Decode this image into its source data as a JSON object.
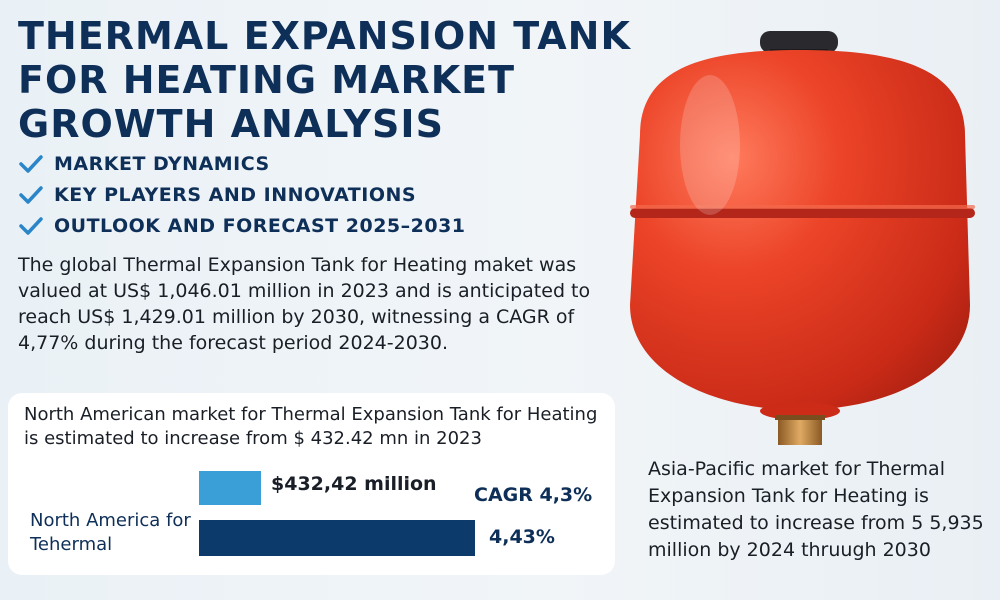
{
  "title": "THERMAL EXPANSION TANK FOR HEATING MARKET GROWTH ANALYSIS",
  "bullets": [
    "MARKET DYNAMICS",
    "KEY PLAYERS AND INNOVATIONS",
    "OUTLOOK AND FORECAST 2025–2031"
  ],
  "intro": "The global Thermal Expansion Tank for Heating maket was valued at US$ 1,046.01 million in 2023 and is anticipated to reach US$ 1,429.01 million by 2030, witnessing a CAGR of 4,77% during the forecast period 2024-2030.",
  "north_america": {
    "text": "North American market for Thermal Expansion Tank for Heating is estimated to increase from $ 432.42 mn in 2023",
    "label": "North America for Tehermal",
    "bar_value_label": "$432,42 million",
    "cagr_label": "CAGR 4,3%",
    "bar2_label": "4,43%"
  },
  "asia_pacific": {
    "text": "Asia-Pacific market for Thermal Expansion Tank for Heating is estimated to increase from 5 5,935 million by 2024 thruugh 2030"
  },
  "colors": {
    "title": "#0e2f58",
    "bar_light": "#3a9fd6",
    "bar_dark": "#0b3a6b",
    "tank_red": "#e63a26"
  },
  "icons": [
    "check-icon",
    "expansion-tank-illustration"
  ]
}
